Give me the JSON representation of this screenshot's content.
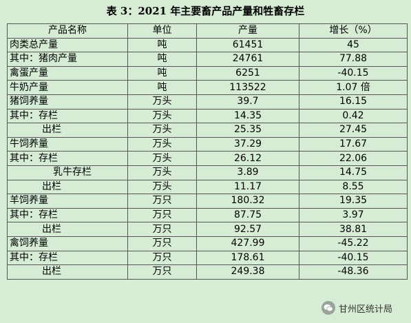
{
  "title": "表 3：2021 年主要畜产品产量和牲畜存栏",
  "headers": [
    "产品名称",
    "单位",
    "产量",
    "增长（%）"
  ],
  "rows": [
    {
      "name": "肉类总产量",
      "level": 0,
      "unit": "吨",
      "value": "61451",
      "growth": "45"
    },
    {
      "name": "其中：猪肉产量",
      "level": 0,
      "unit": "吨",
      "value": "24761",
      "growth": "77.88"
    },
    {
      "name": "禽蛋产量",
      "level": 0,
      "unit": "吨",
      "value": "6251",
      "growth": "-40.15"
    },
    {
      "name": "牛奶产量",
      "level": 0,
      "unit": "吨",
      "value": "113522",
      "growth": "1.07 倍"
    },
    {
      "name": "猪饲养量",
      "level": 0,
      "unit": "万头",
      "value": "39.7",
      "growth": "16.15"
    },
    {
      "name": "其中：存栏",
      "level": 0,
      "unit": "万头",
      "value": "14.35",
      "growth": "0.42"
    },
    {
      "name": "出栏",
      "level": 1,
      "unit": "万头",
      "value": "25.35",
      "growth": "27.45"
    },
    {
      "name": "牛饲养量",
      "level": 0,
      "unit": "万头",
      "value": "37.29",
      "growth": "17.67"
    },
    {
      "name": "其中：存栏",
      "level": 0,
      "unit": "万头",
      "value": "26.12",
      "growth": "22.06"
    },
    {
      "name": "乳牛存栏",
      "level": 2,
      "unit": "万头",
      "value": "3.89",
      "growth": "14.75"
    },
    {
      "name": "出栏",
      "level": 1,
      "unit": "万头",
      "value": "11.17",
      "growth": "8.55"
    },
    {
      "name": "羊饲养量",
      "level": 0,
      "unit": "万只",
      "value": "180.32",
      "growth": "19.35"
    },
    {
      "name": "其中：存栏",
      "level": 0,
      "unit": "万只",
      "value": "87.75",
      "growth": "3.97"
    },
    {
      "name": "出栏",
      "level": 1,
      "unit": "万只",
      "value": "92.57",
      "growth": "38.81"
    },
    {
      "name": "禽饲养量",
      "level": 0,
      "unit": "万只",
      "value": "427.99",
      "growth": "-45.22"
    },
    {
      "name": "其中：存栏",
      "level": 0,
      "unit": "万只",
      "value": "178.61",
      "growth": "-40.15"
    },
    {
      "name": "出栏",
      "level": 1,
      "unit": "万只",
      "value": "249.38",
      "growth": "-48.36"
    }
  ],
  "watermark": {
    "text": "甘州区统计局",
    "icon": "wechat-icon"
  }
}
